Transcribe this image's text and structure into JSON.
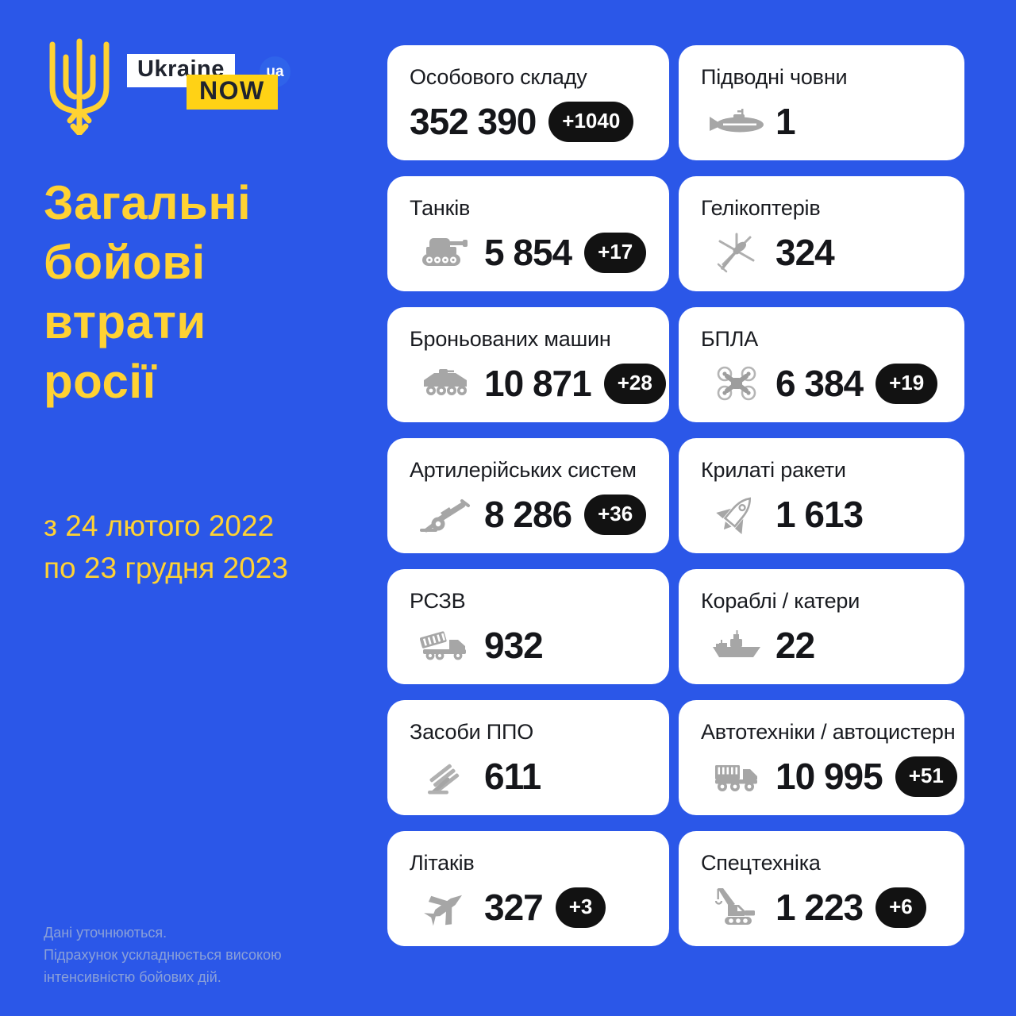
{
  "brand": {
    "ukraine": "Ukraine",
    "now": "NOW",
    "ua": "ua"
  },
  "title_lines": [
    "Загальні",
    "бойові",
    "втрати",
    "росії"
  ],
  "period_lines": [
    "з 24 лютого 2022",
    "по 23 грудня 2023"
  ],
  "footnote_lines": [
    "Дані уточнюються.",
    "Підрахунок ускладнюється високою",
    "інтенсивністю бойових дій."
  ],
  "colors": {
    "background": "#2b57e8",
    "accent_yellow": "#ffd233",
    "card_bg": "#ffffff",
    "pill_bg": "#121212",
    "icon_gray": "#a6a6a6",
    "footnote_text": "#8aa0d8"
  },
  "cards": [
    {
      "label": "Особового складу",
      "icon": null,
      "value": "352 390",
      "delta": "+1040"
    },
    {
      "label": "Підводні човни",
      "icon": "submarine-icon",
      "value": "1",
      "delta": null
    },
    {
      "label": "Танків",
      "icon": "tank-icon",
      "value": "5 854",
      "delta": "+17"
    },
    {
      "label": "Гелікоптерів",
      "icon": "helicopter-icon",
      "value": "324",
      "delta": null
    },
    {
      "label": "Броньованих машин",
      "icon": "apc-icon",
      "value": "10 871",
      "delta": "+28"
    },
    {
      "label": "БПЛА",
      "icon": "drone-icon",
      "value": "6 384",
      "delta": "+19"
    },
    {
      "label": "Артилерійських систем",
      "icon": "artillery-icon",
      "value": "8 286",
      "delta": "+36"
    },
    {
      "label": "Крилаті ракети",
      "icon": "missile-icon",
      "value": "1 613",
      "delta": null
    },
    {
      "label": "РСЗВ",
      "icon": "mlrs-icon",
      "value": "932",
      "delta": null
    },
    {
      "label": "Кораблі / катери",
      "icon": "ship-icon",
      "value": "22",
      "delta": null
    },
    {
      "label": "Засоби ППО",
      "icon": "air-defense-icon",
      "value": "611",
      "delta": null
    },
    {
      "label": "Автотехніки / автоцистерн",
      "icon": "truck-icon",
      "value": "10 995",
      "delta": "+51"
    },
    {
      "label": "Літаків",
      "icon": "fighter-jet-icon",
      "value": "327",
      "delta": "+3"
    },
    {
      "label": "Спецтехніка",
      "icon": "crane-icon",
      "value": "1 223",
      "delta": "+6"
    }
  ],
  "chart_data": {
    "type": "table",
    "title": "Загальні бойові втрати росії",
    "subtitle": "з 24 лютого 2022 по 23 грудня 2023",
    "columns": [
      "category",
      "total",
      "change_last_day"
    ],
    "rows": [
      [
        "Особового складу",
        352390,
        1040
      ],
      [
        "Підводні човни",
        1,
        null
      ],
      [
        "Танків",
        5854,
        17
      ],
      [
        "Гелікоптерів",
        324,
        null
      ],
      [
        "Броньованих машин",
        10871,
        28
      ],
      [
        "БПЛА",
        6384,
        19
      ],
      [
        "Артилерійських систем",
        8286,
        36
      ],
      [
        "Крилаті ракети",
        1613,
        null
      ],
      [
        "РСЗВ",
        932,
        null
      ],
      [
        "Кораблі / катери",
        22,
        null
      ],
      [
        "Засоби ППО",
        611,
        null
      ],
      [
        "Автотехніки / автоцистерн",
        10995,
        51
      ],
      [
        "Літаків",
        327,
        3
      ],
      [
        "Спецтехніка",
        1223,
        6
      ]
    ]
  }
}
